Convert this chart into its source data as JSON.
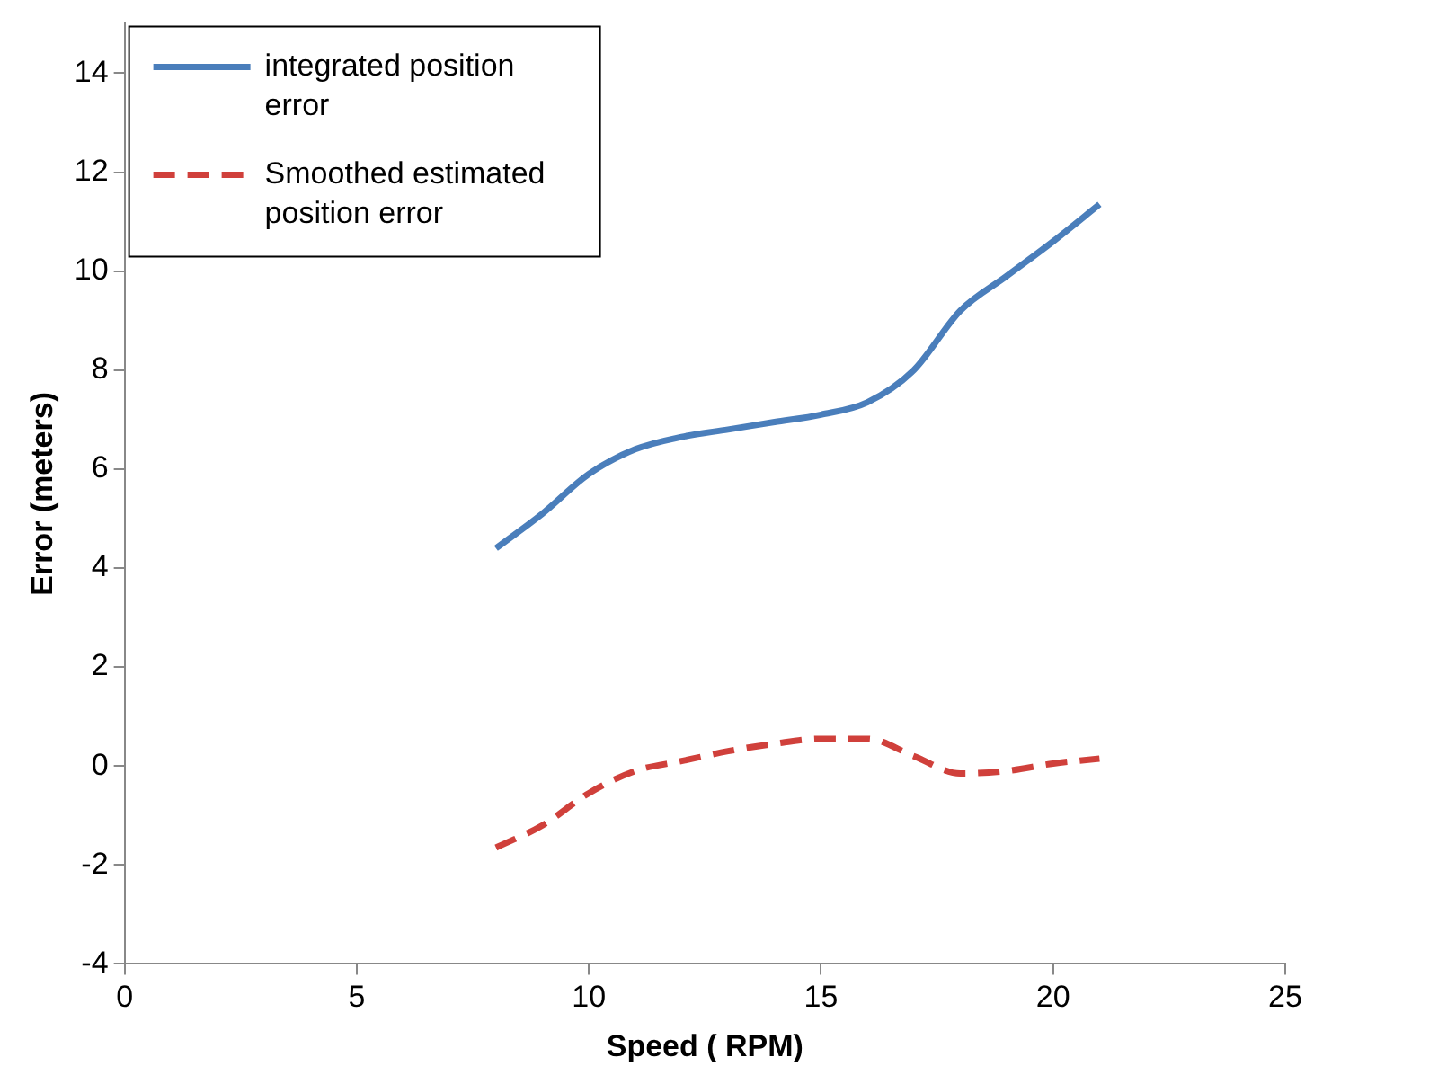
{
  "chart_data": {
    "type": "line",
    "xlabel": "Speed ( RPM)",
    "ylabel": "Error (meters)",
    "xlim": [
      0,
      25
    ],
    "xticks": [
      0,
      5,
      10,
      15,
      20,
      25
    ],
    "ylim": [
      -4,
      15
    ],
    "yticks": [
      -4,
      -2,
      0,
      2,
      4,
      6,
      8,
      10,
      12,
      14
    ],
    "grid": false,
    "legend": "top left",
    "marker": "none",
    "series": [
      {
        "name": "integrated position error",
        "color": "#4a7ebb",
        "line_style": "solid",
        "x": [
          8,
          9,
          10,
          11,
          12,
          13,
          14,
          15,
          16,
          17,
          18,
          19,
          20,
          21
        ],
        "values": [
          4.4,
          5.1,
          5.9,
          6.4,
          6.65,
          6.8,
          6.95,
          7.1,
          7.35,
          8.0,
          9.2,
          9.9,
          10.6,
          11.35
        ]
      },
      {
        "name": "Smoothed estimated position error",
        "color": "#d0403b",
        "line_style": "dashed",
        "x": [
          8,
          9,
          10,
          11,
          12,
          13,
          14,
          15,
          16,
          17,
          18,
          19,
          20,
          21
        ],
        "values": [
          -1.65,
          -1.2,
          -0.55,
          -0.1,
          0.1,
          0.3,
          0.45,
          0.55,
          0.55,
          0.2,
          -0.15,
          -0.1,
          0.05,
          0.15
        ]
      }
    ]
  }
}
